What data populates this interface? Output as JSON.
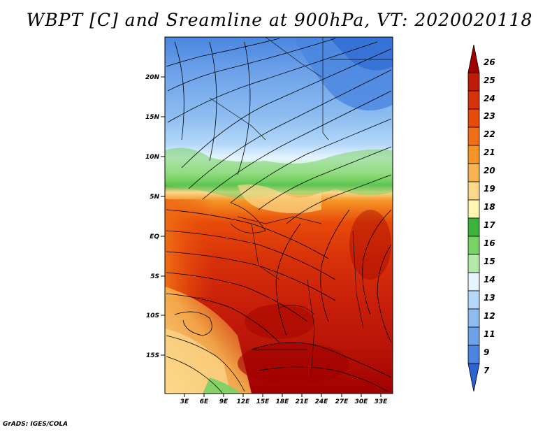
{
  "title": "WBPT [C] and Sreamline at 900hPa, VT: 2020020118",
  "footer": "GrADS: IGES/COLA",
  "map": {
    "lat_labels": [
      "20N",
      "15N",
      "10N",
      "5N",
      "EQ",
      "5S",
      "10S",
      "15S"
    ],
    "lon_labels": [
      "3E",
      "6E",
      "9E",
      "12E",
      "15E",
      "18E",
      "21E",
      "24E",
      "27E",
      "30E",
      "33E"
    ],
    "lat_range": [
      -20,
      24
    ],
    "lon_range": [
      0,
      35
    ]
  },
  "colorbar": {
    "levels": [
      "26",
      "25",
      "24",
      "23",
      "22",
      "21",
      "20",
      "19",
      "18",
      "17",
      "16",
      "15",
      "14",
      "13",
      "12",
      "11",
      "9",
      "7"
    ],
    "colors": [
      "#a00000",
      "#c01a0a",
      "#d8320a",
      "#e84a0a",
      "#f06e14",
      "#f59424",
      "#f8b450",
      "#fcd88c",
      "#fff6b0",
      "#3cb43c",
      "#78d264",
      "#b4eaa8",
      "#e6f5ff",
      "#b4d7fa",
      "#8cbcf0",
      "#6ea2ea",
      "#4a86e0",
      "#2a64d0"
    ]
  }
}
